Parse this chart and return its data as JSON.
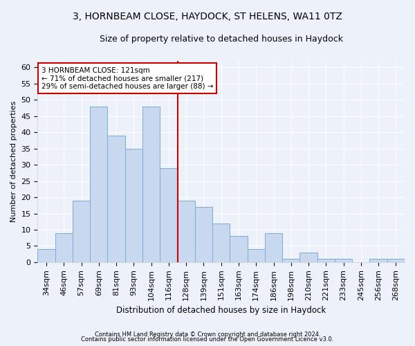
{
  "title1": "3, HORNBEAM CLOSE, HAYDOCK, ST HELENS, WA11 0TZ",
  "title2": "Size of property relative to detached houses in Haydock",
  "xlabel": "Distribution of detached houses by size in Haydock",
  "ylabel": "Number of detached properties",
  "categories": [
    "34sqm",
    "46sqm",
    "57sqm",
    "69sqm",
    "81sqm",
    "93sqm",
    "104sqm",
    "116sqm",
    "128sqm",
    "139sqm",
    "151sqm",
    "163sqm",
    "174sqm",
    "186sqm",
    "198sqm",
    "210sqm",
    "221sqm",
    "233sqm",
    "245sqm",
    "256sqm",
    "268sqm"
  ],
  "values": [
    4,
    9,
    19,
    48,
    39,
    35,
    48,
    29,
    19,
    17,
    12,
    8,
    4,
    9,
    1,
    3,
    1,
    1,
    0,
    1,
    1
  ],
  "bar_color": "#c8d9ef",
  "bar_edge_color": "#7aadd4",
  "vline_position": 7.5,
  "annotation_text_line1": "3 HORNBEAM CLOSE: 121sqm",
  "annotation_text_line2": "← 71% of detached houses are smaller (217)",
  "annotation_text_line3": "29% of semi-detached houses are larger (88) →",
  "ylim": [
    0,
    62
  ],
  "yticks": [
    0,
    5,
    10,
    15,
    20,
    25,
    30,
    35,
    40,
    45,
    50,
    55,
    60
  ],
  "background_color": "#edf2fa",
  "grid_color": "#ffffff",
  "annotation_box_color": "#ffffff",
  "annotation_box_edge": "#cc0000",
  "vline_color": "#cc0000",
  "title1_fontsize": 10,
  "title2_fontsize": 9,
  "xlabel_fontsize": 8.5,
  "ylabel_fontsize": 8,
  "tick_fontsize": 8,
  "footnote1": "Contains HM Land Registry data © Crown copyright and database right 2024.",
  "footnote2": "Contains public sector information licensed under the Open Government Licence v3.0."
}
